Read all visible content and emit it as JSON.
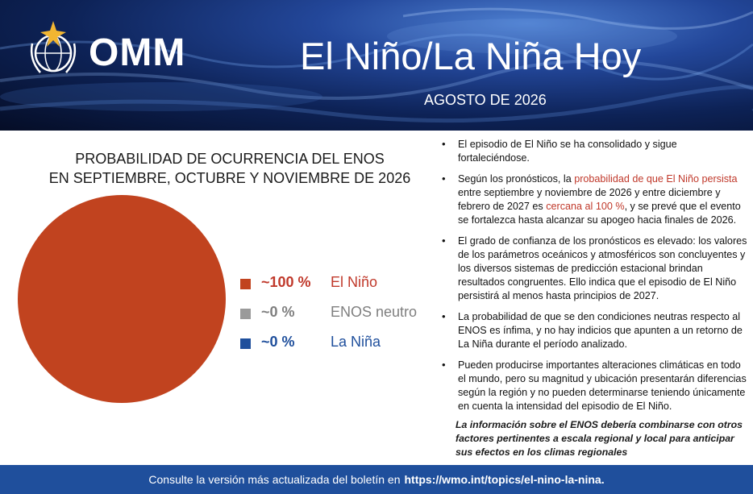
{
  "header": {
    "logo_text": "OMM",
    "title": "El Niño/La Niña Hoy",
    "subtitle": "AGOSTO DE 2026"
  },
  "chart_title": {
    "line1": "PROBABILIDAD DE OCURRENCIA DEL ENOS",
    "line2": "EN SEPTIEMBRE, OCTUBRE Y NOVIEMBRE DE 2026"
  },
  "chart_data": {
    "type": "pie",
    "title": "PROBABILIDAD DE OCURRENCIA DEL ENOS EN SEPTIEMBRE, OCTUBRE Y NOVIEMBRE DE 2026",
    "categories": [
      "El Niño",
      "ENOS neutro",
      "La Niña"
    ],
    "values": [
      100,
      0,
      0
    ],
    "value_labels": [
      "~100 %",
      "~0 %",
      "~0 %"
    ],
    "colors": [
      "#c1431f",
      "#9a9a9a",
      "#1f4f9c"
    ],
    "label_colors": [
      "#c0392b",
      "#7f7f7f",
      "#1f4f9c"
    ],
    "legend_position": "right"
  },
  "bullets": {
    "b1": "El episodio de El Niño se ha consolidado y sigue fortaleciéndose.",
    "b2_pre": "Según los pronósticos, la ",
    "b2_red1": "probabilidad de que El Niño persista",
    "b2_mid": " entre septiembre y noviembre de 2026 y entre diciembre y febrero de 2027 es ",
    "b2_red2": "cercana al 100 %",
    "b2_post": ", y se prevé que el evento se fortalezca hasta alcanzar su apogeo hacia finales de 2026.",
    "b3": "El grado de confianza de los pronósticos es elevado: los valores de los parámetros oceánicos y atmosféricos son concluyentes y los diversos sistemas de predicción estacional brindan resultados congruentes. Ello indica que el episodio de El Niño persistirá al menos hasta principios de 2027.",
    "b4": "La probabilidad de que se den condiciones neutras respecto al ENOS es ínfima, y no hay indicios que apunten a un retorno de La Niña durante el período analizado.",
    "b5": "Pueden producirse importantes alteraciones climáticas en todo el mundo, pero su magnitud y ubicación presentarán diferencias según la región y no pueden determinarse teniendo únicamente en cuenta la intensidad del episodio de El Niño."
  },
  "note": "La información sobre el ENOS debería combinarse con otros factores pertinentes a escala regional y local para anticipar sus efectos en los climas regionales",
  "footer": {
    "text": "Consulte la versión más actualizada del boletín en",
    "link": "https://wmo.int/topics/el-nino-la-nina."
  },
  "colors": {
    "header_dark": "#0d2256",
    "footer_blue": "#1f4f9c",
    "accent_red": "#c0392b"
  },
  "icons": {
    "logo": "wmo-emblem-icon"
  }
}
